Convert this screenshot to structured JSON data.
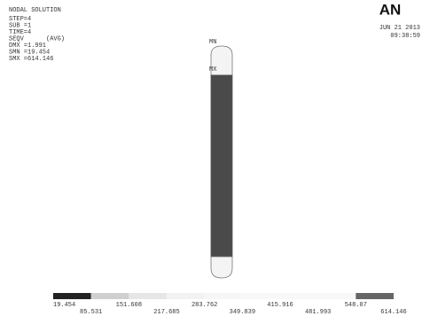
{
  "info": {
    "title": "NODAL SOLUTION",
    "lines": [
      "STEP=4",
      "SUB =1",
      "TIME=4",
      "SEQV      (AVG)",
      "DMX =1.991",
      "SMN =19.454",
      "SMX =614.146"
    ]
  },
  "corner": {
    "logo": "AN",
    "date": "JUN 21 2013",
    "time": "09:38:59"
  },
  "markers": {
    "min": "MN",
    "max": "MX"
  },
  "legend": {
    "labels": [
      "19.454",
      "85.531",
      "151.608",
      "217.685",
      "283.762",
      "349.839",
      "415.916",
      "481.993",
      "548.07",
      "614.146"
    ]
  }
}
